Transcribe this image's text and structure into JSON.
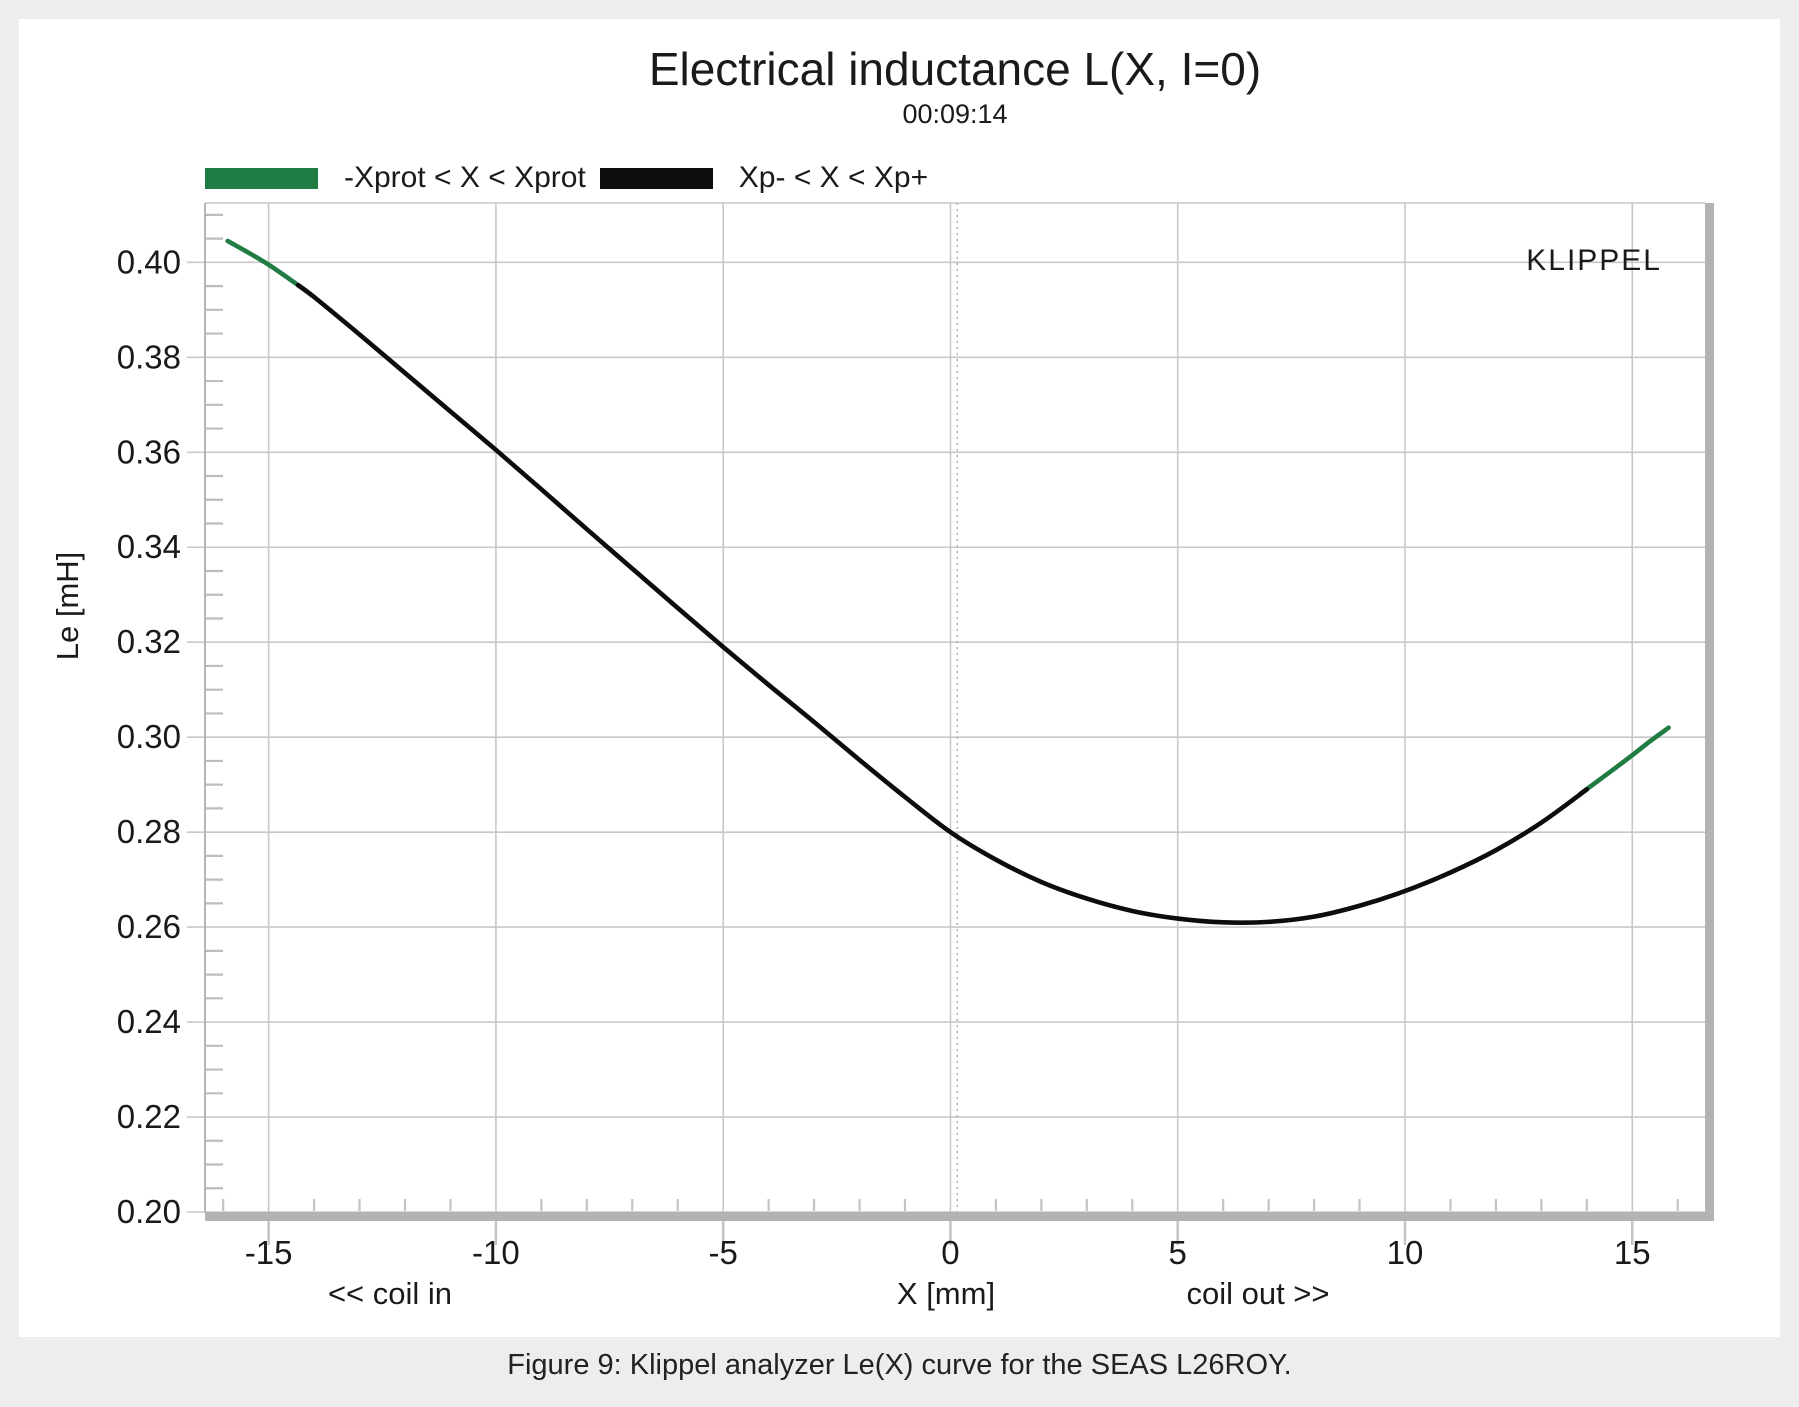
{
  "page": {
    "background": "#ededed",
    "panel_background": "#ffffff",
    "text_color": "#1a1a1a"
  },
  "header": {
    "title": "Electrical inductance L(X, I=0)",
    "subtitle": "00:09:14"
  },
  "legend": {
    "items": [
      {
        "label": "-Xprot < X < Xprot",
        "color": "#1f7c42"
      },
      {
        "label": "Xp- < X < Xp+",
        "color": "#0d0d0d"
      }
    ]
  },
  "watermark": "KLIPPEL",
  "caption": "Figure 9: Klippel analyzer Le(X) curve for the SEAS L26ROY.",
  "chart_data": {
    "type": "line",
    "title": "Electrical inductance L(X, I=0)",
    "subtitle": "00:09:14",
    "xlabel": "X [mm]",
    "ylabel": "Le [mH]",
    "x_sublabels": {
      "left": "<< coil in",
      "right": "coil out >>"
    },
    "xlim": [
      -16.4,
      16.6
    ],
    "ylim": [
      0.2,
      0.4125
    ],
    "xticks": [
      -15,
      -10,
      -5,
      0,
      5,
      10,
      15
    ],
    "yticks": [
      0.2,
      0.22,
      0.24,
      0.26,
      0.28,
      0.3,
      0.32,
      0.34,
      0.36,
      0.38,
      0.4
    ],
    "x_minor_step": 1,
    "y_minor_step": 0.005,
    "grid": true,
    "legend_position": "top-left",
    "marker_x": 0.15,
    "series": [
      {
        "name": "-Xprot < X < Xprot",
        "color": "#1f7c42",
        "segments": [
          [
            [
              -15.9,
              0.4045
            ],
            [
              -15.4,
              0.4018
            ],
            [
              -15.0,
              0.3995
            ],
            [
              -14.5,
              0.3962
            ],
            [
              -14.0,
              0.3927
            ]
          ],
          [
            [
              13.85,
              0.288
            ],
            [
              14.5,
              0.2926
            ],
            [
              15.0,
              0.2962
            ],
            [
              15.4,
              0.2992
            ],
            [
              15.8,
              0.302
            ]
          ]
        ]
      },
      {
        "name": "Xp- < X < Xp+",
        "color": "#0d0d0d",
        "segments": [
          [
            [
              -14.35,
              0.3952
            ],
            [
              -14.0,
              0.3927
            ],
            [
              -13.0,
              0.3848
            ],
            [
              -12.0,
              0.3767
            ],
            [
              -11.0,
              0.3686
            ],
            [
              -10.0,
              0.3605
            ],
            [
              -9.0,
              0.3522
            ],
            [
              -8.0,
              0.3438
            ],
            [
              -7.0,
              0.3355
            ],
            [
              -6.0,
              0.3272
            ],
            [
              -5.0,
              0.319
            ],
            [
              -4.0,
              0.311
            ],
            [
              -3.0,
              0.3032
            ],
            [
              -2.0,
              0.2952
            ],
            [
              -1.0,
              0.2874
            ],
            [
              0.0,
              0.28
            ],
            [
              1.0,
              0.2742
            ],
            [
              2.0,
              0.2695
            ],
            [
              3.0,
              0.266
            ],
            [
              4.0,
              0.2634
            ],
            [
              5.0,
              0.2618
            ],
            [
              6.0,
              0.261
            ],
            [
              7.0,
              0.2611
            ],
            [
              8.0,
              0.2622
            ],
            [
              9.0,
              0.2645
            ],
            [
              10.0,
              0.2676
            ],
            [
              11.0,
              0.2715
            ],
            [
              12.0,
              0.2762
            ],
            [
              13.0,
              0.282
            ],
            [
              14.0,
              0.289
            ]
          ]
        ]
      }
    ]
  }
}
